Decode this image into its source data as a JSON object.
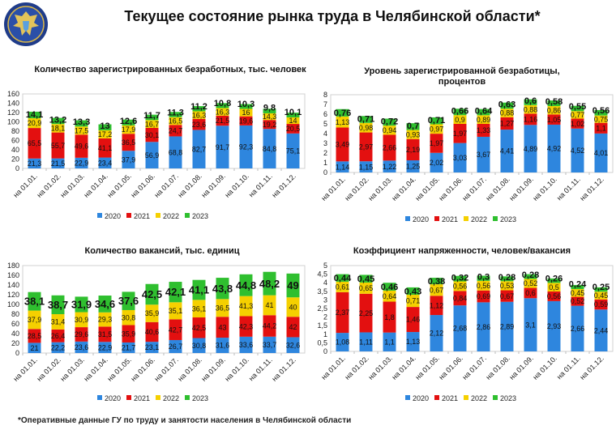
{
  "title": "Текущее состояние рынка труда в Челябинской области*",
  "footnote": "*Оперативные данные ГУ по труду и занятости населения в Челябинской области",
  "colors": {
    "2020": "#2e86de",
    "2021": "#e31010",
    "2022": "#f5d000",
    "2023": "#2fbf2f"
  },
  "chart_data": [
    {
      "type": "bar",
      "stacked": true,
      "title": "Количество зарегистрированных безработных, тыс. человек",
      "categories": [
        "на 01.01.",
        "на 01.02.",
        "на 01.03.",
        "на 01.04.",
        "на 01.05.",
        "на 01.06.",
        "на 01.07.",
        "на 01.08.",
        "на 01.09.",
        "на 01.10.",
        "на 01.11.",
        "на 01.12."
      ],
      "ylim": [
        0,
        160
      ],
      "yticks": [
        "0",
        "20",
        "40",
        "60",
        "80",
        "100",
        "120",
        "140",
        "160"
      ],
      "grid": false,
      "legend": "bottom",
      "series": [
        {
          "name": "2020",
          "values": [
            21.3,
            21.5,
            22.9,
            23.4,
            37.9,
            56.9,
            68.8,
            82.7,
            91.7,
            92.3,
            84.8,
            75.1
          ],
          "labels": [
            "21,3",
            "21,5",
            "22,9",
            "23,4",
            "37,9",
            "56,9",
            "68,8",
            "82,7",
            "91,7",
            "92,3",
            "84,8",
            "75,1"
          ]
        },
        {
          "name": "2021",
          "values": [
            65.5,
            55.7,
            49.6,
            41.1,
            36.5,
            30.1,
            24.7,
            23.6,
            21.5,
            19.6,
            19.2,
            20.5
          ],
          "labels": [
            "65,5",
            "55,7",
            "49,6",
            "41,1",
            "36,5",
            "30,1",
            "24,7",
            "23,6",
            "21,5",
            "19,6",
            "19,2",
            "20,5"
          ]
        },
        {
          "name": "2022",
          "values": [
            20.9,
            18.1,
            17.5,
            17.2,
            17.9,
            16.7,
            16.5,
            16.3,
            16.3,
            16,
            14.3,
            14
          ],
          "labels": [
            "20,9",
            "18,1",
            "17,5",
            "17,2",
            "17,9",
            "16,7",
            "16,5",
            "16,3",
            "16,3",
            "16",
            "14,3",
            "14"
          ]
        },
        {
          "name": "2023",
          "values": [
            14.1,
            13.2,
            13.3,
            13,
            12.6,
            11.7,
            11.3,
            11.2,
            10.8,
            10.3,
            9.8,
            10.1
          ],
          "labels": [
            "14,1",
            "13,2",
            "13,3",
            "13",
            "12,6",
            "11,7",
            "11,3",
            "11,2",
            "10,8",
            "10,3",
            "9,8",
            "10,1"
          ]
        }
      ]
    },
    {
      "type": "bar",
      "stacked": true,
      "title": "Уровень зарегистрированной безработицы, процентов",
      "categories": [
        "на 01.01.",
        "на 01.02.",
        "на 01.03.",
        "на 01.04.",
        "на 01.05.",
        "на 01.06.",
        "на 01.07.",
        "на 01.08.",
        "на 01.09.",
        "на 01.10.",
        "на 01.11.",
        "на 01.12."
      ],
      "ylim": [
        0,
        8
      ],
      "yticks": [
        "0",
        "1",
        "2",
        "3",
        "4",
        "5",
        "6",
        "7",
        "8"
      ],
      "grid": false,
      "legend": "bottom",
      "series": [
        {
          "name": "2020",
          "values": [
            1.14,
            1.15,
            1.22,
            1.25,
            2.02,
            3.03,
            3.67,
            4.41,
            4.89,
            4.92,
            4.52,
            4.01
          ],
          "labels": [
            "1,14",
            "1,15",
            "1,22",
            "1,25",
            "2,02",
            "3,03",
            "3,67",
            "4,41",
            "4,89",
            "4,92",
            "4,52",
            "4,01"
          ]
        },
        {
          "name": "2021",
          "values": [
            3.49,
            2.97,
            2.66,
            2.19,
            1.97,
            1.97,
            1.33,
            1.27,
            1.16,
            1.05,
            1.02,
            1.1
          ],
          "labels": [
            "3,49",
            "2,97",
            "2,66",
            "2,19",
            "1,97",
            "1,97",
            "1,33",
            "1,27",
            "1,16",
            "1,05",
            "1,02",
            "1,1"
          ]
        },
        {
          "name": "2022",
          "values": [
            1.13,
            0.98,
            0.94,
            0.93,
            0.97,
            0.9,
            0.89,
            0.88,
            0.88,
            0.86,
            0.77,
            0.75
          ],
          "labels": [
            "1,13",
            "0,98",
            "0,94",
            "0,93",
            "0,97",
            "0,9",
            "0,89",
            "0,88",
            "0,88",
            "0,86",
            "0,77",
            "0,75"
          ]
        },
        {
          "name": "2023",
          "values": [
            0.76,
            0.71,
            0.72,
            0.7,
            0.71,
            0.66,
            0.64,
            0.63,
            0.6,
            0.58,
            0.55,
            0.56
          ],
          "labels": [
            "0,76",
            "0,71",
            "0,72",
            "0,7",
            "0,71",
            "0,66",
            "0,64",
            "0,63",
            "0,6",
            "0,58",
            "0,55",
            "0,56"
          ]
        }
      ]
    },
    {
      "type": "bar",
      "stacked": true,
      "title": "Количество вакансий, тыс. единиц",
      "categories": [
        "на 01.01.",
        "на 01.02.",
        "на 01.03.",
        "на 01.04.",
        "на 01.05.",
        "на 01.06.",
        "на 01.07.",
        "на 01.08.",
        "на 01.09.",
        "на 01.10.",
        "на 01.11.",
        "на 01.12."
      ],
      "ylim": [
        0,
        180
      ],
      "yticks": [
        "0",
        "20",
        "40",
        "60",
        "80",
        "100",
        "120",
        "140",
        "160",
        "180"
      ],
      "grid": false,
      "legend": "bottom",
      "series": [
        {
          "name": "2020",
          "values": [
            21,
            22.2,
            23.6,
            22.9,
            21.7,
            23.1,
            26.7,
            30.8,
            31.6,
            33.6,
            33.7,
            32.6
          ],
          "labels": [
            "21",
            "22,2",
            "23,6",
            "22,9",
            "21,7",
            "23,1",
            "26,7",
            "30,8",
            "31,6",
            "33,6",
            "33,7",
            "32,6"
          ]
        },
        {
          "name": "2021",
          "values": [
            28.5,
            26.4,
            29.6,
            31.5,
            35.9,
            40.6,
            42.7,
            42.5,
            43,
            42.3,
            44.2,
            42
          ],
          "labels": [
            "28,5",
            "26,4",
            "29,6",
            "31,5",
            "35,9",
            "40,6",
            "42,7",
            "42,5",
            "43",
            "42,3",
            "44,2",
            "42"
          ]
        },
        {
          "name": "2022",
          "values": [
            37.9,
            31.4,
            30.9,
            29.3,
            30.8,
            35.9,
            35.1,
            36.1,
            36.5,
            41.3,
            41,
            40
          ],
          "labels": [
            "37,9",
            "31,4",
            "30,9",
            "29,3",
            "30,8",
            "35,9",
            "35,1",
            "36,1",
            "36,5",
            "41,3",
            "41",
            "40"
          ]
        },
        {
          "name": "2023",
          "values": [
            38.1,
            38.7,
            31.9,
            34.6,
            37.6,
            42.5,
            42.1,
            41.1,
            43.8,
            44.8,
            48.2,
            49
          ],
          "labels": [
            "38,1",
            "38,7",
            "31,9",
            "34,6",
            "37,6",
            "42,5",
            "42,1",
            "41,1",
            "43,8",
            "44,8",
            "48,2",
            "49"
          ]
        }
      ]
    },
    {
      "type": "bar",
      "stacked": true,
      "title": "Коэффициент напряженности, человек/вакансия",
      "categories": [
        "на 01.01.",
        "на 01.02.",
        "на 01.03.",
        "на 01.04.",
        "на 01.05.",
        "на 01.06.",
        "на 01.07.",
        "на 01.08.",
        "на 01.09.",
        "на 01.10.",
        "на 01.11.",
        "на 01.12."
      ],
      "ylim": [
        0,
        5
      ],
      "yticks": [
        "0",
        "0,5",
        "1",
        "1,5",
        "2",
        "2,5",
        "3",
        "3,5",
        "4",
        "4,5",
        "5"
      ],
      "grid": false,
      "legend": "bottom",
      "series": [
        {
          "name": "2020",
          "values": [
            1.08,
            1.11,
            1.1,
            1.13,
            2.12,
            2.68,
            2.86,
            2.89,
            3.1,
            2.93,
            2.66,
            2.44
          ],
          "labels": [
            "1,08",
            "1,11",
            "1,1",
            "1,13",
            "2,12",
            "2,68",
            "2,86",
            "2,89",
            "3,1",
            "2,93",
            "2,66",
            "2,44"
          ]
        },
        {
          "name": "2021",
          "values": [
            2.37,
            2.25,
            1.8,
            1.46,
            1.12,
            0.84,
            0.69,
            0.67,
            0.6,
            0.56,
            0.52,
            0.59
          ],
          "labels": [
            "2,37",
            "2,25",
            "1,8",
            "1,46",
            "1,12",
            "0,84",
            "0,69",
            "0,67",
            "0,6",
            "0,56",
            "0,52",
            "0,59"
          ]
        },
        {
          "name": "2022",
          "values": [
            0.61,
            0.65,
            0.64,
            0.71,
            0.67,
            0.56,
            0.56,
            0.53,
            0.52,
            0.5,
            0.45,
            0.45
          ],
          "labels": [
            "0,61",
            "0,65",
            "0,64",
            "0,71",
            "0,67",
            "0,56",
            "0,56",
            "0,53",
            "0,52",
            "0,5",
            "0,45",
            "0,45"
          ]
        },
        {
          "name": "2023",
          "values": [
            0.44,
            0.45,
            0.46,
            0.43,
            0.38,
            0.32,
            0.3,
            0.28,
            0.28,
            0.26,
            0.24,
            0.25
          ],
          "labels": [
            "0,44",
            "0,45",
            "0,46",
            "0,43",
            "0,38",
            "0,32",
            "0,3",
            "0,28",
            "0,28",
            "0,26",
            "0,24",
            "0,25"
          ]
        }
      ]
    }
  ]
}
